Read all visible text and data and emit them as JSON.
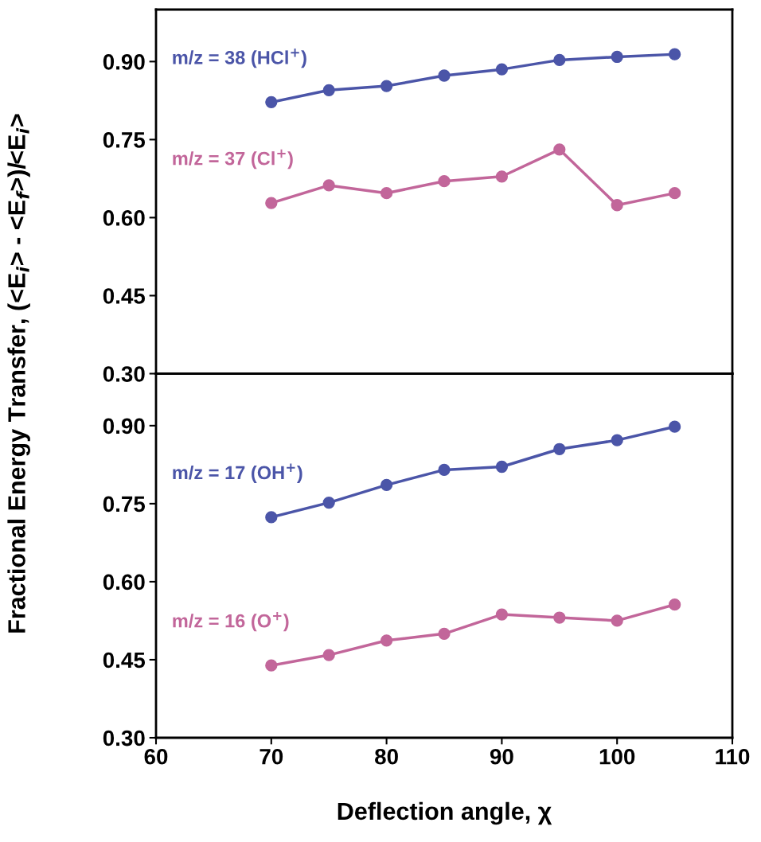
{
  "chart_data": [
    {
      "type": "line",
      "x": [
        70,
        75,
        80,
        85,
        90,
        95,
        100,
        105
      ],
      "xlim": [
        60,
        110
      ],
      "xticks": [
        60,
        70,
        80,
        90,
        100,
        110
      ],
      "ylim": [
        0.3,
        1.0
      ],
      "yticks": [
        {
          "value": 0.3,
          "label": "0.30"
        },
        {
          "value": 0.45,
          "label": "0.45"
        },
        {
          "value": 0.6,
          "label": "0.60"
        },
        {
          "value": 0.75,
          "label": "0.75"
        },
        {
          "value": 0.9,
          "label": "0.90"
        }
      ],
      "tick_labels": "y",
      "ylabel": "Fractional Energy Transfer, (<E$_{i}$> - <E$_{f}$>)/<E$_{i}$>",
      "marker": "circle",
      "grid": false,
      "series": [
        {
          "name": "m/z = 38 (HCl$^{+}$)",
          "color": "#4b55a8",
          "values": [
            0.822,
            0.845,
            0.853,
            0.873,
            0.885,
            0.903,
            0.909,
            0.914
          ]
        },
        {
          "name": "m/z = 37 (Cl$^{+}$)",
          "color": "#c2669a",
          "values": [
            0.628,
            0.662,
            0.647,
            0.67,
            0.679,
            0.731,
            0.624,
            0.647
          ]
        }
      ]
    },
    {
      "type": "line",
      "x": [
        70,
        75,
        80,
        85,
        90,
        95,
        100,
        105
      ],
      "xlim": [
        60,
        110
      ],
      "xticks": [
        60,
        70,
        80,
        90,
        100,
        110
      ],
      "ylim": [
        0.3,
        1.0
      ],
      "yticks": [
        {
          "value": 0.3,
          "label": "0.30"
        },
        {
          "value": 0.45,
          "label": "0.45"
        },
        {
          "value": 0.6,
          "label": "0.60"
        },
        {
          "value": 0.75,
          "label": "0.75"
        },
        {
          "value": 0.9,
          "label": "0.90"
        }
      ],
      "xlabel": "Deflection angle, χ",
      "marker": "circle",
      "grid": false,
      "series": [
        {
          "name": "m/z = 17 (OH$^{+}$)",
          "color": "#4b55a8",
          "values": [
            0.724,
            0.752,
            0.786,
            0.815,
            0.821,
            0.855,
            0.872,
            0.898
          ]
        },
        {
          "name": "m/z = 16 (O$^{+}$)",
          "color": "#c2669a",
          "values": [
            0.439,
            0.459,
            0.487,
            0.5,
            0.537,
            0.531,
            0.525,
            0.556
          ]
        }
      ]
    }
  ]
}
